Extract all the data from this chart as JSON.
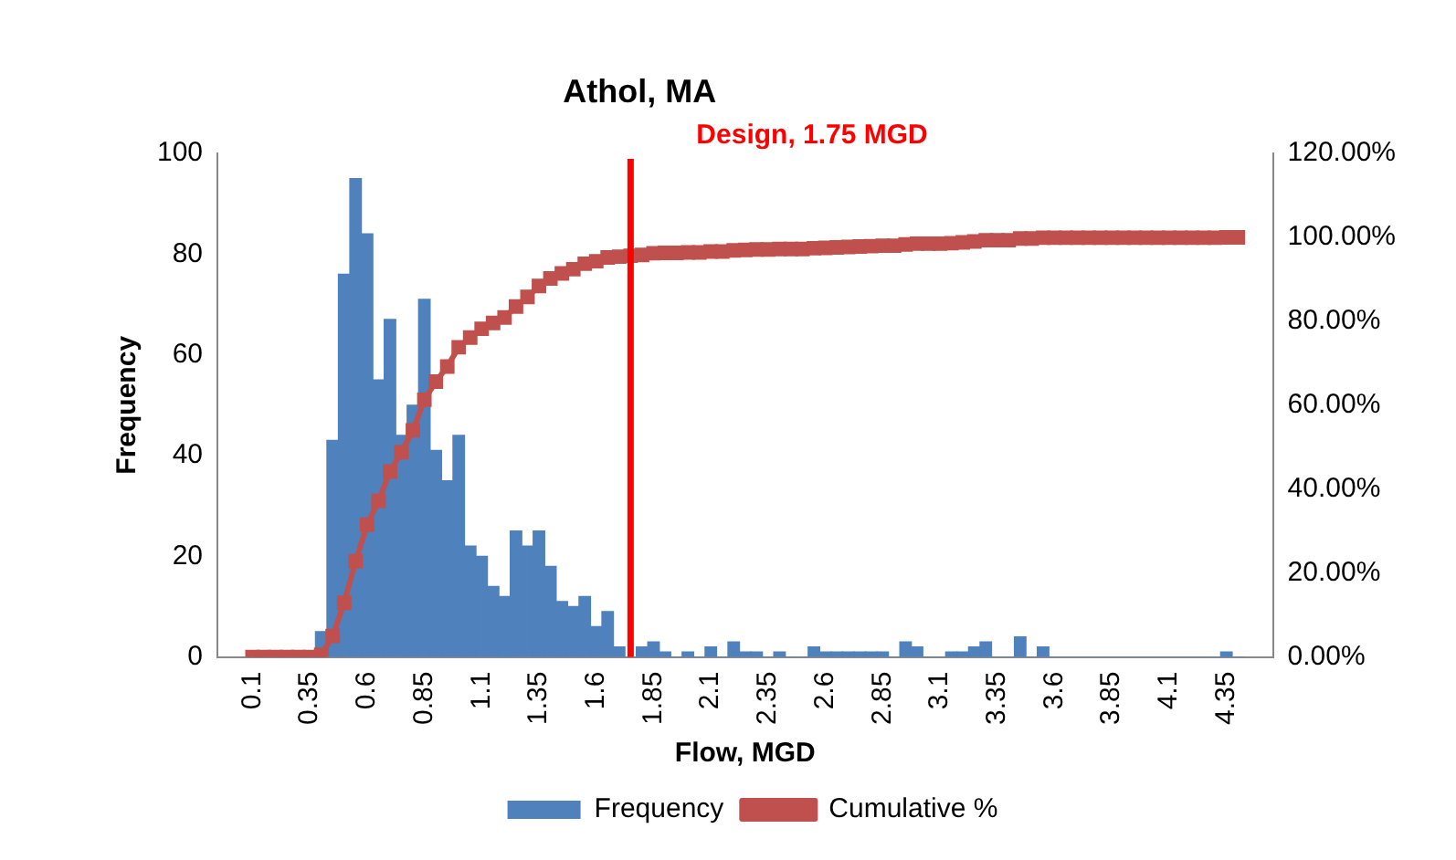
{
  "chart_data": {
    "type": "bar",
    "title": "Athol, MA",
    "xlabel": "Flow, MGD",
    "ylabel": "Frequency",
    "x": [
      0.1,
      0.15,
      0.2,
      0.25,
      0.3,
      0.35,
      0.4,
      0.45,
      0.5,
      0.55,
      0.6,
      0.65,
      0.7,
      0.75,
      0.8,
      0.85,
      0.9,
      0.95,
      1.0,
      1.05,
      1.1,
      1.15,
      1.2,
      1.25,
      1.3,
      1.35,
      1.4,
      1.45,
      1.5,
      1.55,
      1.6,
      1.65,
      1.7,
      1.75,
      1.8,
      1.85,
      1.9,
      1.95,
      2.0,
      2.05,
      2.1,
      2.15,
      2.2,
      2.25,
      2.3,
      2.35,
      2.4,
      2.45,
      2.5,
      2.55,
      2.6,
      2.65,
      2.7,
      2.75,
      2.8,
      2.85,
      2.9,
      2.95,
      3.0,
      3.05,
      3.1,
      3.15,
      3.2,
      3.25,
      3.3,
      3.35,
      3.4,
      3.45,
      3.5,
      3.55,
      3.6,
      3.65,
      3.7,
      3.75,
      3.8,
      3.85,
      3.9,
      3.95,
      4.0,
      4.05,
      4.1,
      4.15,
      4.2,
      4.25,
      4.3,
      4.35,
      4.4
    ],
    "series": [
      {
        "name": "Frequency",
        "color": "#4f81bd",
        "values": [
          0,
          0,
          0,
          0,
          0,
          0,
          5,
          43,
          76,
          95,
          84,
          55,
          67,
          44,
          50,
          71,
          41,
          35,
          44,
          22,
          20,
          14,
          12,
          25,
          22,
          25,
          18,
          11,
          10,
          12,
          6,
          9,
          2,
          null,
          2,
          3,
          1,
          0,
          1,
          0,
          2,
          0,
          3,
          1,
          1,
          0,
          1,
          0,
          0,
          2,
          1,
          1,
          1,
          1,
          1,
          1,
          0,
          3,
          2,
          0,
          0,
          1,
          1,
          2,
          3,
          0,
          0,
          4,
          0,
          2,
          0,
          0,
          0,
          0,
          0,
          0,
          0,
          0,
          0,
          0,
          0,
          0,
          0,
          0,
          0,
          1,
          0
        ]
      },
      {
        "name": "Cumulative %",
        "type": "line",
        "axis": "y2",
        "color": "#c0504d",
        "values": [
          0,
          0,
          0,
          0,
          0,
          0,
          0.5,
          5.0,
          12.9,
          22.8,
          31.5,
          37.2,
          44.2,
          48.8,
          54.0,
          61.3,
          65.6,
          69.2,
          73.8,
          76.1,
          78.2,
          79.6,
          80.9,
          83.5,
          85.8,
          88.4,
          90.2,
          91.4,
          92.4,
          93.7,
          94.3,
          95.2,
          95.4,
          95.6,
          95.8,
          96.2,
          96.3,
          96.3,
          96.4,
          96.4,
          96.6,
          96.6,
          96.9,
          97.0,
          97.1,
          97.1,
          97.2,
          97.2,
          97.2,
          97.4,
          97.5,
          97.6,
          97.7,
          97.8,
          97.9,
          98.0,
          98.0,
          98.3,
          98.5,
          98.5,
          98.5,
          98.6,
          98.8,
          99.0,
          99.3,
          99.3,
          99.3,
          99.7,
          99.7,
          99.9,
          99.9,
          99.9,
          99.9,
          99.9,
          99.9,
          99.9,
          99.9,
          99.9,
          99.9,
          99.9,
          99.9,
          99.9,
          99.9,
          99.9,
          99.9,
          100,
          100
        ]
      }
    ],
    "xlim": [
      0.075,
      4.425
    ],
    "xticks": [
      0.1,
      0.35,
      0.6,
      0.85,
      1.1,
      1.35,
      1.6,
      1.85,
      2.1,
      2.35,
      2.6,
      2.85,
      3.1,
      3.35,
      3.6,
      3.85,
      4.1,
      4.35
    ],
    "ylim": [
      0,
      100
    ],
    "yticks": [
      0,
      20,
      40,
      60,
      80,
      100
    ],
    "y2lim": [
      0,
      120
    ],
    "y2ticks": [
      {
        "value": 0,
        "label": "0.00%"
      },
      {
        "value": 20,
        "label": "20.00%"
      },
      {
        "value": 40,
        "label": "40.00%"
      },
      {
        "value": 60,
        "label": "60.00%"
      },
      {
        "value": 80,
        "label": "80.00%"
      },
      {
        "value": 100,
        "label": "100.00%"
      },
      {
        "value": 120,
        "label": "120.00%"
      }
    ],
    "ref_lines": [
      {
        "axis": "x",
        "value": 1.75,
        "label": "Design, 1.75 MGD",
        "color": "#ff0000"
      }
    ],
    "marker": "square",
    "legend": "bottom",
    "grid": false
  }
}
